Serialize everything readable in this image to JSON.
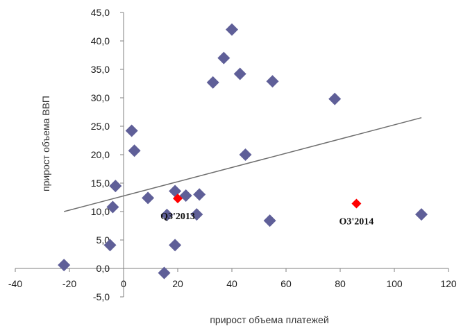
{
  "chart_data": {
    "type": "scatter",
    "xlabel": "прирост объема платежей",
    "ylabel": "прирост объема ВВП",
    "xlim": [
      -40,
      120
    ],
    "ylim": [
      -5,
      45
    ],
    "x_ticks": [
      "-40",
      "-20",
      "0",
      "20",
      "40",
      "60",
      "80",
      "100",
      "120"
    ],
    "y_ticks": [
      "-5,0",
      "0,0",
      "5,0",
      "10,0",
      "15,0",
      "20,0",
      "25,0",
      "30,0",
      "35,0",
      "40,0",
      "45,0"
    ],
    "grid": false,
    "legend": "none",
    "points": [
      {
        "x": -22,
        "y": 0.6
      },
      {
        "x": -5,
        "y": 4.1
      },
      {
        "x": -4,
        "y": 10.8
      },
      {
        "x": -3,
        "y": 14.5
      },
      {
        "x": 3,
        "y": 24.2
      },
      {
        "x": 4,
        "y": 20.7
      },
      {
        "x": 9,
        "y": 12.4
      },
      {
        "x": 15,
        "y": -0.8
      },
      {
        "x": 16,
        "y": 9.4
      },
      {
        "x": 19,
        "y": 4.1
      },
      {
        "x": 19,
        "y": 13.6
      },
      {
        "x": 23,
        "y": 12.8
      },
      {
        "x": 27,
        "y": 9.5
      },
      {
        "x": 28,
        "y": 13.0
      },
      {
        "x": 33,
        "y": 32.7
      },
      {
        "x": 37,
        "y": 37.0
      },
      {
        "x": 40,
        "y": 42.0
      },
      {
        "x": 43,
        "y": 34.2
      },
      {
        "x": 45,
        "y": 20.0
      },
      {
        "x": 54,
        "y": 8.4
      },
      {
        "x": 55,
        "y": 32.9
      },
      {
        "x": 78,
        "y": 29.8
      },
      {
        "x": 110,
        "y": 9.5
      }
    ],
    "highlight": [
      {
        "label": "Q3'2013",
        "x": 20,
        "y": 12.3
      },
      {
        "label": "О3'2014",
        "x": 86,
        "y": 11.4
      }
    ],
    "trendline": {
      "x": [
        -22,
        110
      ],
      "y": [
        10.0,
        26.5
      ]
    },
    "colors": {
      "marker": "#5f5f98",
      "highlight": "#ff0000",
      "trendline": "#6e6e6e",
      "axis": "#7f7f7f"
    }
  }
}
